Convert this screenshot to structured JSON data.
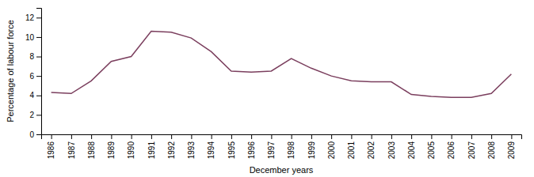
{
  "chart_data": {
    "type": "line",
    "x": [
      1986,
      1987,
      1988,
      1989,
      1990,
      1991,
      1992,
      1993,
      1994,
      1995,
      1996,
      1997,
      1998,
      1999,
      2000,
      2001,
      2002,
      2003,
      2004,
      2005,
      2006,
      2007,
      2008,
      2009
    ],
    "values": [
      4.3,
      4.2,
      5.5,
      7.5,
      8.0,
      10.6,
      10.5,
      9.9,
      8.5,
      6.5,
      6.4,
      6.5,
      7.8,
      6.8,
      6.0,
      5.5,
      5.4,
      5.4,
      4.1,
      3.9,
      3.8,
      3.8,
      4.2,
      6.2
    ],
    "color": "#7b3f5e",
    "xlabel": "December years",
    "ylabel": "Percentage of labour force",
    "xlim": [
      1985.5,
      2009.5
    ],
    "xticks": [
      1986,
      1987,
      1988,
      1989,
      1990,
      1991,
      1992,
      1993,
      1994,
      1995,
      1996,
      1997,
      1998,
      1999,
      2000,
      2001,
      2002,
      2003,
      2004,
      2005,
      2006,
      2007,
      2008,
      2009
    ],
    "ylim": [
      0,
      13
    ],
    "yticks": [
      0,
      2,
      4,
      6,
      8,
      10,
      12
    ],
    "grid": false
  }
}
